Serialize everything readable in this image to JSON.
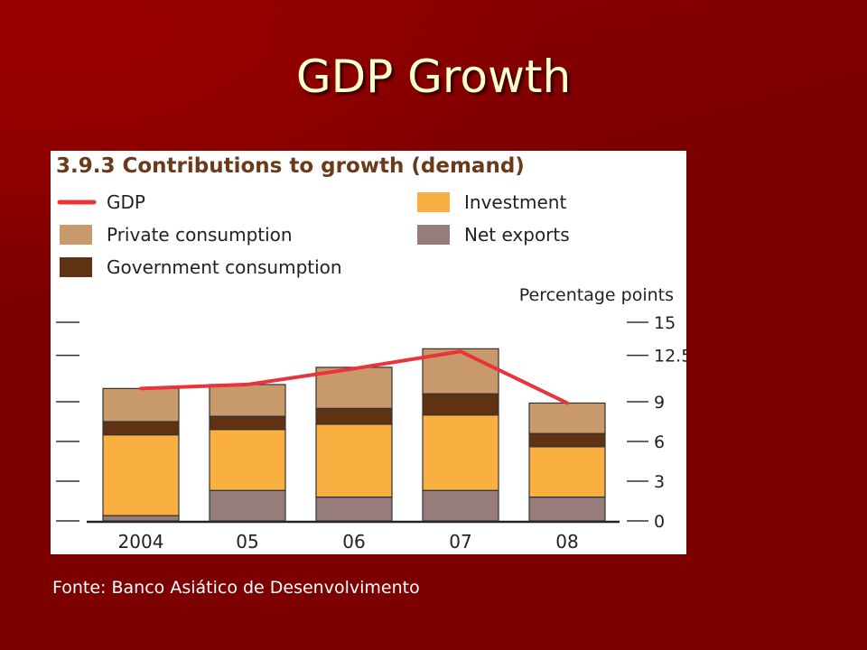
{
  "slide": {
    "title": "GDP Growth",
    "source": "Fonte: Banco Asiático de Desenvolvimento"
  },
  "colors": {
    "background": "#7d0000",
    "title": "#ffffcc",
    "gdp_line": "#e8343a",
    "investment": "#f9b040",
    "private_consumption": "#c89a6b",
    "government_consumption": "#5e3212",
    "net_exports": "#967c7a",
    "chart_title": "#6b3a1a"
  },
  "chart_data": {
    "type": "bar",
    "stacked": true,
    "title": "3.9.3 Contributions to growth (demand)",
    "ylabel": "Percentage points",
    "categories": [
      "2004",
      "05",
      "06",
      "07",
      "08"
    ],
    "y_ticks": [
      "0",
      "3",
      "6",
      "9",
      "12.5",
      "15"
    ],
    "ylim": [
      0,
      15
    ],
    "legend_position": "top",
    "series": [
      {
        "name": "Net exports",
        "key": "net_exports",
        "values": [
          0.4,
          2.3,
          1.8,
          2.3,
          1.8
        ]
      },
      {
        "name": "Investment",
        "key": "investment",
        "values": [
          6.1,
          4.6,
          5.5,
          5.7,
          3.8
        ]
      },
      {
        "name": "Government consumption",
        "key": "government_consumption",
        "values": [
          1.0,
          1.0,
          1.2,
          1.6,
          1.0
        ]
      },
      {
        "name": "Private consumption",
        "key": "private_consumption",
        "values": [
          2.5,
          2.4,
          3.1,
          3.4,
          2.3
        ]
      }
    ],
    "line": {
      "name": "GDP",
      "key": "gdp_line",
      "values": [
        10.0,
        10.3,
        11.5,
        12.8,
        8.9
      ]
    },
    "legend": [
      {
        "label": "GDP",
        "key": "gdp_line",
        "kind": "line"
      },
      {
        "label": "Investment",
        "key": "investment",
        "kind": "box"
      },
      {
        "label": "Private consumption",
        "key": "private_consumption",
        "kind": "box"
      },
      {
        "label": "Net exports",
        "key": "net_exports",
        "kind": "box"
      },
      {
        "label": "Government consumption",
        "key": "government_consumption",
        "kind": "box"
      }
    ]
  }
}
